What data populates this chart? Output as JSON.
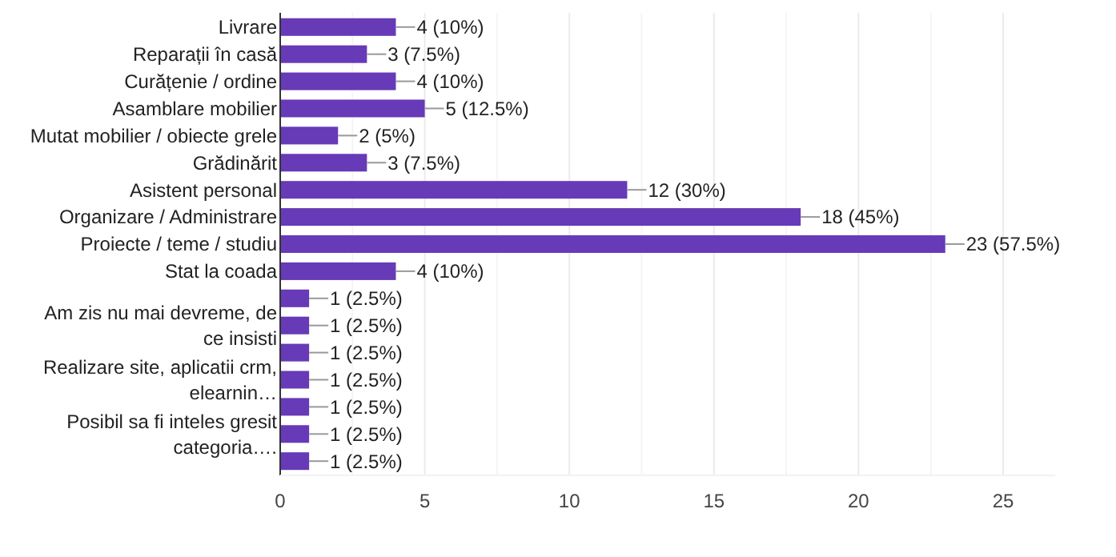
{
  "chart_data": {
    "type": "bar",
    "orientation": "horizontal",
    "color": "#673ab7",
    "categories": [
      "Livrare",
      "Reparații în casă",
      "Curățenie / ordine",
      "Asamblare mobilier",
      "Mutat mobilier / obiecte grele",
      "Grădinărit",
      "Asistent personal",
      "Organizare / Administrare",
      "Proiecte / teme / studiu",
      "Stat la coada",
      null,
      "Am zis nu mai devreme, de ce insisti",
      null,
      "Realizare site, aplicatii crm, elearnin…",
      null,
      "Posibil sa fi inteles gresit categoria….",
      null
    ],
    "values": [
      4,
      3,
      4,
      5,
      2,
      3,
      12,
      18,
      23,
      4,
      1,
      1,
      1,
      1,
      1,
      1,
      1
    ],
    "value_labels": [
      "4 (10%)",
      "3 (7.5%)",
      "4 (10%)",
      "5 (12.5%)",
      "2 (5%)",
      "3 (7.5%)",
      "12 (30%)",
      "18 (45%)",
      "23 (57.5%)",
      "4 (10%)",
      "1 (2.5%)",
      "1 (2.5%)",
      "1 (2.5%)",
      "1 (2.5%)",
      "1 (2.5%)",
      "1 (2.5%)",
      "1 (2.5%)"
    ],
    "xlim": [
      0,
      26.8
    ],
    "xticks": [
      0,
      {
        "value": 2.5,
        "label": null
      },
      5,
      {
        "value": 7.5,
        "label": null
      },
      10,
      {
        "value": 12.5,
        "label": null
      },
      15,
      {
        "value": 17.5,
        "label": null
      },
      20,
      {
        "value": 22.5,
        "label": null
      },
      25
    ],
    "grid": "x"
  }
}
